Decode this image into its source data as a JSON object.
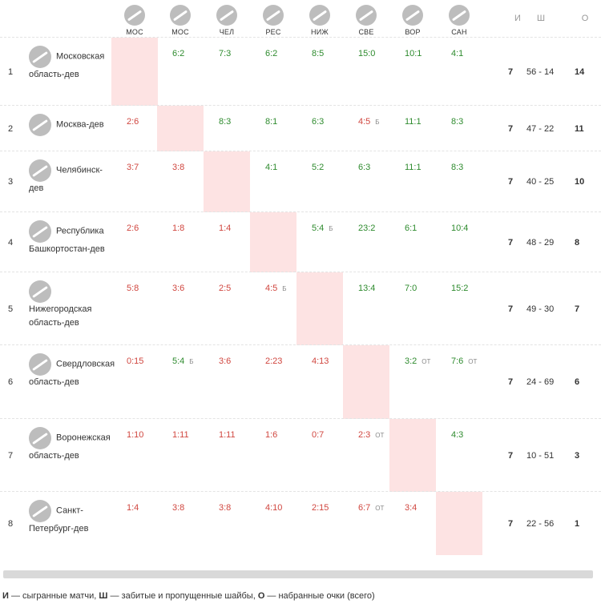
{
  "header": {
    "abbrs": [
      "МОС",
      "МОС",
      "ЧЕЛ",
      "РЕС",
      "НИЖ",
      "СВЕ",
      "ВОР",
      "САН"
    ],
    "stat_cols": [
      "И",
      "Ш",
      "О"
    ]
  },
  "rows": [
    {
      "pos": "1",
      "name": "Московская область-дев",
      "games": "7",
      "goals": "56 - 14",
      "points": "14",
      "cells": [
        null,
        {
          "s": "6:2",
          "r": "w"
        },
        {
          "s": "7:3",
          "r": "w"
        },
        {
          "s": "6:2",
          "r": "w"
        },
        {
          "s": "8:5",
          "r": "w"
        },
        {
          "s": "15:0",
          "r": "w"
        },
        {
          "s": "10:1",
          "r": "w"
        },
        {
          "s": "4:1",
          "r": "w"
        }
      ]
    },
    {
      "pos": "2",
      "name": "Москва-дев",
      "games": "7",
      "goals": "47 - 22",
      "points": "11",
      "cells": [
        {
          "s": "2:6",
          "r": "l"
        },
        null,
        {
          "s": "8:3",
          "r": "w"
        },
        {
          "s": "8:1",
          "r": "w"
        },
        {
          "s": "6:3",
          "r": "w"
        },
        {
          "s": "4:5",
          "r": "l",
          "x": "Б"
        },
        {
          "s": "11:1",
          "r": "w"
        },
        {
          "s": "8:3",
          "r": "w"
        }
      ]
    },
    {
      "pos": "3",
      "name": "Челябинск-дев",
      "games": "7",
      "goals": "40 - 25",
      "points": "10",
      "cells": [
        {
          "s": "3:7",
          "r": "l"
        },
        {
          "s": "3:8",
          "r": "l"
        },
        null,
        {
          "s": "4:1",
          "r": "w"
        },
        {
          "s": "5:2",
          "r": "w"
        },
        {
          "s": "6:3",
          "r": "w"
        },
        {
          "s": "11:1",
          "r": "w"
        },
        {
          "s": "8:3",
          "r": "w"
        }
      ]
    },
    {
      "pos": "4",
      "name": "Республика Башкортостан-дев",
      "games": "7",
      "goals": "48 - 29",
      "points": "8",
      "cells": [
        {
          "s": "2:6",
          "r": "l"
        },
        {
          "s": "1:8",
          "r": "l"
        },
        {
          "s": "1:4",
          "r": "l"
        },
        null,
        {
          "s": "5:4",
          "r": "w",
          "x": "Б"
        },
        {
          "s": "23:2",
          "r": "w"
        },
        {
          "s": "6:1",
          "r": "w"
        },
        {
          "s": "10:4",
          "r": "w"
        }
      ]
    },
    {
      "pos": "5",
      "name": "Нижегородская область-дев",
      "games": "7",
      "goals": "49 - 30",
      "points": "7",
      "cells": [
        {
          "s": "5:8",
          "r": "l"
        },
        {
          "s": "3:6",
          "r": "l"
        },
        {
          "s": "2:5",
          "r": "l"
        },
        {
          "s": "4:5",
          "r": "l",
          "x": "Б"
        },
        null,
        {
          "s": "13:4",
          "r": "w"
        },
        {
          "s": "7:0",
          "r": "w"
        },
        {
          "s": "15:2",
          "r": "w"
        }
      ]
    },
    {
      "pos": "6",
      "name": "Свердловская область-дев",
      "games": "7",
      "goals": "24 - 69",
      "points": "6",
      "cells": [
        {
          "s": "0:15",
          "r": "l"
        },
        {
          "s": "5:4",
          "r": "w",
          "x": "Б"
        },
        {
          "s": "3:6",
          "r": "l"
        },
        {
          "s": "2:23",
          "r": "l"
        },
        {
          "s": "4:13",
          "r": "l"
        },
        null,
        {
          "s": "3:2",
          "r": "w",
          "x": "ОТ"
        },
        {
          "s": "7:6",
          "r": "w",
          "x": "ОТ"
        }
      ]
    },
    {
      "pos": "7",
      "name": "Воронежская область-дев",
      "games": "7",
      "goals": "10 - 51",
      "points": "3",
      "cells": [
        {
          "s": "1:10",
          "r": "l"
        },
        {
          "s": "1:11",
          "r": "l"
        },
        {
          "s": "1:11",
          "r": "l"
        },
        {
          "s": "1:6",
          "r": "l"
        },
        {
          "s": "0:7",
          "r": "l"
        },
        {
          "s": "2:3",
          "r": "l",
          "x": "ОТ"
        },
        null,
        {
          "s": "4:3",
          "r": "w"
        }
      ]
    },
    {
      "pos": "8",
      "name": "Санкт-Петербург-дев",
      "games": "7",
      "goals": "22 - 56",
      "points": "1",
      "cells": [
        {
          "s": "1:4",
          "r": "l"
        },
        {
          "s": "3:8",
          "r": "l"
        },
        {
          "s": "3:8",
          "r": "l"
        },
        {
          "s": "4:10",
          "r": "l"
        },
        {
          "s": "2:15",
          "r": "l"
        },
        {
          "s": "6:7",
          "r": "l",
          "x": "ОТ"
        },
        {
          "s": "3:4",
          "r": "l"
        },
        null
      ]
    }
  ],
  "legend": {
    "k1": "И",
    "t1": " — сыгранные матчи, ",
    "k2": "Ш",
    "t2": " — забитые и пропущенные шайбы, ",
    "k3": "О",
    "t3": " — набранные очки (всего)"
  },
  "colors": {
    "win": "#2e8b2e",
    "loss": "#d0463f",
    "diag": "#fde3e3"
  }
}
